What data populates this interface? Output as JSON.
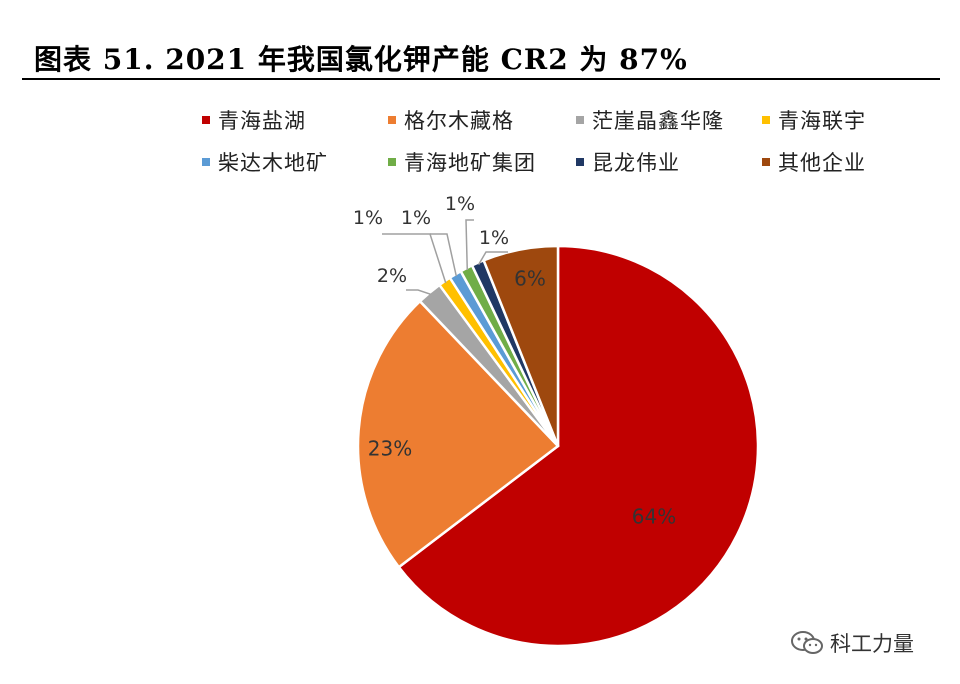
{
  "title": "图表 51. 2021 年我国氯化钾产能 CR2 为 87%",
  "chart_data": {
    "type": "pie",
    "categories": [
      "青海盐湖",
      "格尔木藏格",
      "茫崖晶鑫华隆",
      "青海联宇",
      "柴达木地矿",
      "青海地矿集团",
      "昆龙伟业",
      "其他企业"
    ],
    "values": [
      64,
      23,
      2,
      1,
      1,
      1,
      1,
      6
    ],
    "data_labels": [
      "64%",
      "23%",
      "2%",
      "1%",
      "1%",
      "1%",
      "1%",
      "6%"
    ],
    "colors": [
      "#C00000",
      "#ED7D31",
      "#A5A5A5",
      "#FFC000",
      "#5B9BD5",
      "#70AD47",
      "#203864",
      "#9E480E"
    ],
    "legend_position": "top",
    "start_angle_deg": 0,
    "direction": "clockwise"
  },
  "watermark": {
    "text": "科工力量",
    "icon": "wechat-icon"
  }
}
